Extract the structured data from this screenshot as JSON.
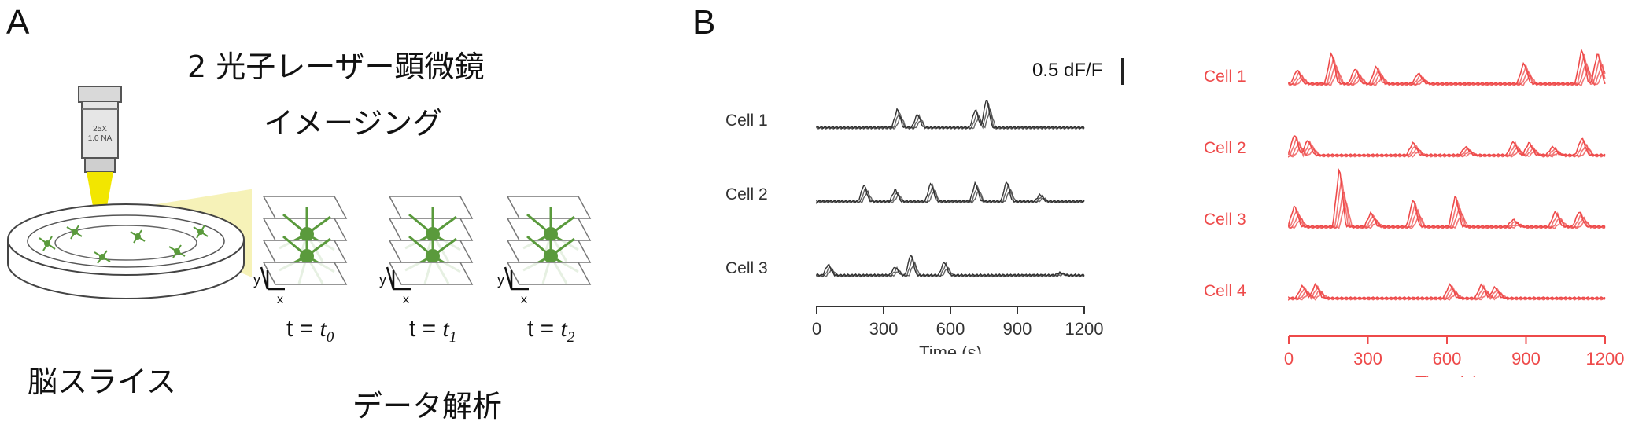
{
  "panel_a": {
    "label": "A",
    "title_line1": "2 光子レーザー顕微鏡",
    "title_line2": "イメージング",
    "objective_text_line1": "25X",
    "objective_text_line2": "1.0 NA",
    "slice_label": "脳スライス",
    "analysis_label": "データ解析",
    "axis_y": "y",
    "axis_x": "x",
    "time_points": [
      {
        "prefix": "t = ",
        "var": "t",
        "sub": "0"
      },
      {
        "prefix": "t = ",
        "var": "t",
        "sub": "1"
      },
      {
        "prefix": "t = ",
        "var": "t",
        "sub": "2"
      }
    ],
    "colors": {
      "neuron": "#5a9a3c",
      "light": "#f2e600",
      "cone": "#f6f2b8"
    }
  },
  "panel_b": {
    "label": "B",
    "scale_bar_label": "0.5 dF/F",
    "colors": {
      "left": "#333333",
      "right": "#ee4a4a"
    }
  },
  "chart_data": [
    {
      "type": "line",
      "xlabel": "Time (s)",
      "x_ticks": [
        "0",
        "300",
        "600",
        "900",
        "1200"
      ],
      "xlim": [
        0,
        1200
      ],
      "color": "#333333",
      "series": [
        {
          "name": "Cell 1",
          "peaks": [
            [
              370,
              0.22
            ],
            [
              460,
              0.16
            ],
            [
              720,
              0.22
            ],
            [
              770,
              0.35
            ]
          ]
        },
        {
          "name": "Cell 2",
          "peaks": [
            [
              220,
              0.2
            ],
            [
              360,
              0.14
            ],
            [
              520,
              0.22
            ],
            [
              720,
              0.22
            ],
            [
              860,
              0.24
            ],
            [
              1010,
              0.08
            ]
          ]
        },
        {
          "name": "Cell 3",
          "peaks": [
            [
              60,
              0.13
            ],
            [
              360,
              0.1
            ],
            [
              430,
              0.25
            ],
            [
              580,
              0.16
            ],
            [
              1100,
              0.03
            ]
          ]
        }
      ]
    },
    {
      "type": "line",
      "xlabel": "Time (s)",
      "x_ticks": [
        "0",
        "300",
        "600",
        "900",
        "1200"
      ],
      "xlim": [
        0,
        1200
      ],
      "color": "#ee4a4a",
      "series": [
        {
          "name": "Cell 1",
          "peaks": [
            [
              40,
              0.2
            ],
            [
              170,
              0.45
            ],
            [
              260,
              0.22
            ],
            [
              340,
              0.25
            ],
            [
              500,
              0.15
            ],
            [
              900,
              0.3
            ],
            [
              1120,
              0.5
            ],
            [
              1180,
              0.45
            ]
          ]
        },
        {
          "name": "Cell 2",
          "peaks": [
            [
              30,
              0.3
            ],
            [
              80,
              0.22
            ],
            [
              480,
              0.18
            ],
            [
              680,
              0.12
            ],
            [
              860,
              0.2
            ],
            [
              920,
              0.18
            ],
            [
              1010,
              0.12
            ],
            [
              1120,
              0.25
            ]
          ]
        },
        {
          "name": "Cell 3",
          "peaks": [
            [
              30,
              0.3
            ],
            [
              200,
              0.85
            ],
            [
              320,
              0.2
            ],
            [
              480,
              0.4
            ],
            [
              640,
              0.45
            ],
            [
              860,
              0.1
            ],
            [
              1020,
              0.22
            ],
            [
              1110,
              0.22
            ]
          ]
        },
        {
          "name": "Cell 4",
          "peaks": [
            [
              60,
              0.18
            ],
            [
              110,
              0.2
            ],
            [
              620,
              0.2
            ],
            [
              740,
              0.2
            ],
            [
              790,
              0.16
            ]
          ]
        }
      ]
    }
  ]
}
